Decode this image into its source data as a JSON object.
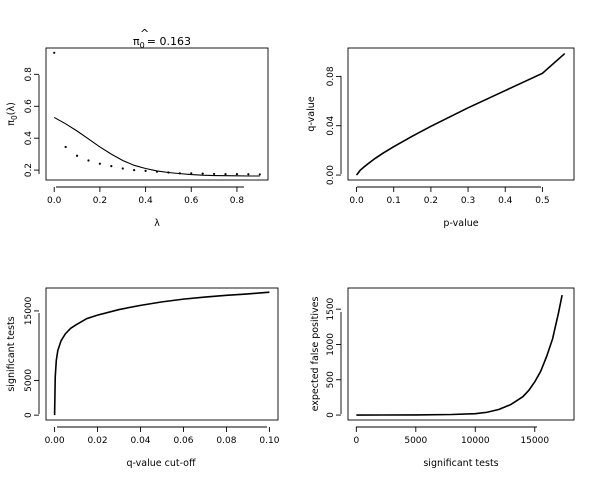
{
  "figure": {
    "background": "#ffffff",
    "ink": "#000000"
  },
  "chart_data": [
    {
      "type": "scatter",
      "title": "π̂₀ = 0.163",
      "title_hat": "^",
      "title_base": "π",
      "title_sub": "0",
      "title_value": "= 0.163",
      "xlabel": "λ",
      "ylabel": "π₀(λ)",
      "ylabel_base": "π",
      "ylabel_sub": "0",
      "ylabel_arg": "(λ)",
      "xlim": [
        -0.036,
        0.936
      ],
      "ylim": [
        0.138,
        0.965
      ],
      "xticks": [
        0.0,
        0.2,
        0.4,
        0.6,
        0.8
      ],
      "xtick_labels": [
        "0.0",
        "0.2",
        "0.4",
        "0.6",
        "0.8"
      ],
      "yticks": [
        0.2,
        0.4,
        0.6,
        0.8
      ],
      "ytick_labels": [
        "0.2",
        "0.4",
        "0.6",
        "0.8"
      ],
      "series": [
        {
          "name": "pi0(lambda) estimates",
          "kind": "points",
          "x": [
            0.0,
            0.05,
            0.1,
            0.15,
            0.2,
            0.25,
            0.3,
            0.35,
            0.4,
            0.45,
            0.5,
            0.55,
            0.6,
            0.65,
            0.7,
            0.75,
            0.8,
            0.85,
            0.9
          ],
          "y": [
            0.935,
            0.345,
            0.29,
            0.26,
            0.24,
            0.225,
            0.21,
            0.2,
            0.195,
            0.19,
            0.185,
            0.18,
            0.18,
            0.178,
            0.176,
            0.175,
            0.175,
            0.174,
            0.173
          ]
        },
        {
          "name": "smoother",
          "kind": "line",
          "x": [
            0.0,
            0.05,
            0.1,
            0.15,
            0.2,
            0.25,
            0.3,
            0.35,
            0.4,
            0.45,
            0.5,
            0.55,
            0.6,
            0.65,
            0.7,
            0.75,
            0.8,
            0.85,
            0.9
          ],
          "y": [
            0.53,
            0.49,
            0.445,
            0.395,
            0.345,
            0.3,
            0.26,
            0.23,
            0.21,
            0.195,
            0.185,
            0.178,
            0.172,
            0.168,
            0.166,
            0.165,
            0.164,
            0.163,
            0.163
          ]
        }
      ]
    },
    {
      "type": "line",
      "title": "",
      "xlabel": "p-value",
      "ylabel": "q-value",
      "xlim": [
        -0.023,
        0.585
      ],
      "ylim": [
        -0.004,
        0.103
      ],
      "xticks": [
        0.0,
        0.1,
        0.2,
        0.3,
        0.4,
        0.5
      ],
      "xtick_labels": [
        "0.0",
        "0.1",
        "0.2",
        "0.3",
        "0.4",
        "0.5"
      ],
      "yticks": [
        0.0,
        0.04,
        0.08
      ],
      "ytick_labels": [
        "0.00",
        "0.04",
        "0.08"
      ],
      "series": [
        {
          "name": "q-value vs p-value",
          "x": [
            0.0,
            0.005,
            0.01,
            0.02,
            0.03,
            0.05,
            0.07,
            0.1,
            0.15,
            0.2,
            0.25,
            0.3,
            0.35,
            0.4,
            0.45,
            0.5,
            0.56
          ],
          "y": [
            0.0,
            0.002,
            0.004,
            0.0065,
            0.009,
            0.0135,
            0.0175,
            0.023,
            0.0315,
            0.0395,
            0.047,
            0.0545,
            0.0615,
            0.0685,
            0.0755,
            0.0825,
            0.0985
          ]
        }
      ]
    },
    {
      "type": "line",
      "title": "",
      "xlabel": "q-value cut-off",
      "ylabel": "significant tests",
      "xlim": [
        -0.004,
        0.104
      ],
      "ylim": [
        -700,
        18300
      ],
      "xticks": [
        0.0,
        0.02,
        0.04,
        0.06,
        0.08,
        0.1
      ],
      "xtick_labels": [
        "0.00",
        "0.02",
        "0.04",
        "0.06",
        "0.08",
        "0.10"
      ],
      "yticks": [
        0,
        5000,
        15000
      ],
      "ytick_labels": [
        "0",
        "5000",
        "15000"
      ],
      "series": [
        {
          "name": "significant tests vs q-value cut-off",
          "x": [
            0.0,
            0.0003,
            0.0008,
            0.0015,
            0.003,
            0.005,
            0.0075,
            0.01,
            0.015,
            0.02,
            0.03,
            0.04,
            0.05,
            0.06,
            0.07,
            0.08,
            0.09,
            0.1
          ],
          "y": [
            0,
            5500,
            7900,
            9300,
            10700,
            11700,
            12500,
            13000,
            13900,
            14400,
            15200,
            15800,
            16300,
            16700,
            17000,
            17250,
            17450,
            17700
          ]
        }
      ]
    },
    {
      "type": "line",
      "title": "",
      "xlabel": "significant tests",
      "ylabel": "expected false positives",
      "xlim": [
        -700,
        18300
      ],
      "ylim": [
        -70,
        1800
      ],
      "xticks": [
        0,
        5000,
        10000,
        15000
      ],
      "xtick_labels": [
        "0",
        "5000",
        "10000",
        "15000"
      ],
      "yticks": [
        0,
        500,
        1000,
        1500
      ],
      "ytick_labels": [
        "0",
        "500",
        "1000",
        "1500"
      ],
      "series": [
        {
          "name": "expected false positives vs significant tests",
          "x": [
            0,
            5000,
            8000,
            10000,
            11000,
            12000,
            13000,
            14000,
            14500,
            15000,
            15500,
            16000,
            16500,
            17000,
            17300
          ],
          "y": [
            0,
            2,
            8,
            20,
            40,
            80,
            150,
            260,
            350,
            470,
            620,
            830,
            1080,
            1450,
            1700
          ]
        }
      ]
    }
  ]
}
